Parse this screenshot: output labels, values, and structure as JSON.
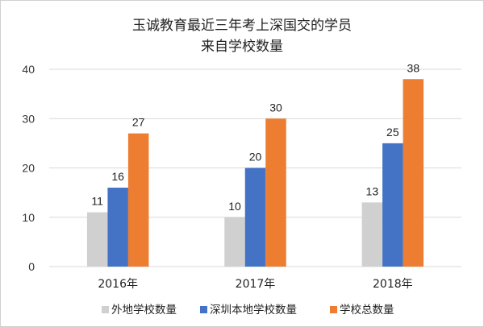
{
  "chart_data": {
    "type": "bar",
    "title_line1": "玉诚教育最近三年考上深国交的学员",
    "title_line2": "来自学校数量",
    "categories": [
      "2016年",
      "2017年",
      "2018年"
    ],
    "series": [
      {
        "name": "外地学校数量",
        "values": [
          11,
          10,
          13
        ],
        "color": "#d0d0d0"
      },
      {
        "name": "深圳本地学校数量",
        "values": [
          16,
          20,
          25
        ],
        "color": "#4472c4"
      },
      {
        "name": "学校总数量",
        "values": [
          27,
          30,
          38
        ],
        "color": "#ed7d31"
      }
    ],
    "ylim": [
      0,
      40
    ],
    "yticks": [
      0,
      10,
      20,
      30,
      40
    ],
    "grid": true,
    "legend_position": "bottom"
  }
}
